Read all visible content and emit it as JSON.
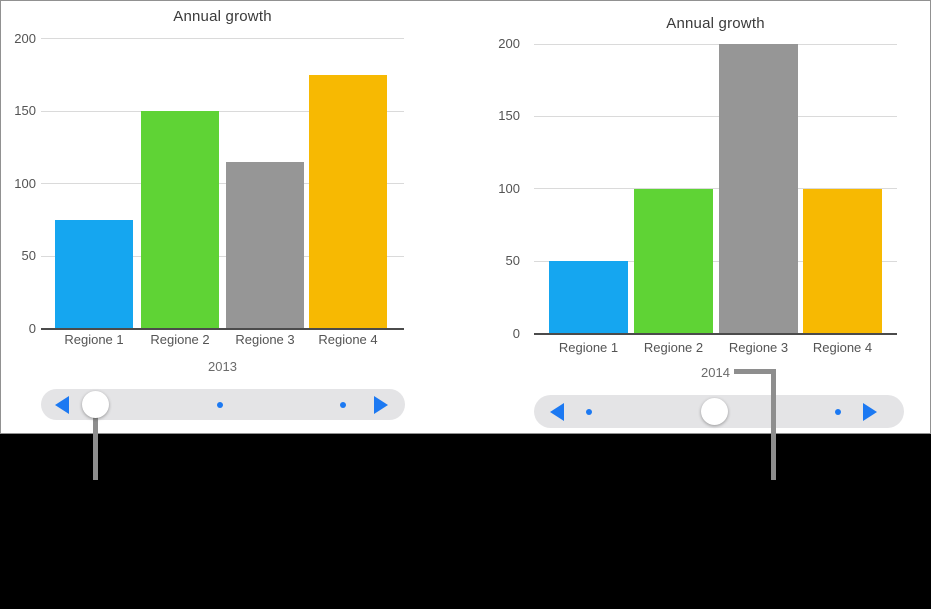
{
  "panel": {
    "background": "#ffffff",
    "border_color": "#919191",
    "bottom_region_color": "#000000"
  },
  "colors": {
    "slider_accent": "#1c79f2",
    "slider_track": "#e4e4e6",
    "slider_thumb": "#ffffff",
    "gridline": "#dadada",
    "axis_line": "#4b4b4b",
    "callout_line": "#8e8e8e",
    "title_text": "#3a3a3a",
    "axis_text": "#545454",
    "year_text": "#6b6b6b"
  },
  "chart_data": [
    {
      "type": "bar",
      "title": "Annual growth",
      "categories": [
        "Regione 1",
        "Regione 2",
        "Regione 3",
        "Regione 4"
      ],
      "values": [
        75,
        150,
        115,
        175
      ],
      "bar_colors": [
        "#15a6f0",
        "#5fd335",
        "#969696",
        "#f7b902"
      ],
      "year_label": "2013",
      "yticks": [
        0,
        50,
        100,
        150,
        200
      ],
      "ylim": [
        0,
        200
      ],
      "xlabel": "",
      "ylabel": "",
      "grid": true,
      "legend": false
    },
    {
      "type": "bar",
      "title": "Annual growth",
      "categories": [
        "Regione 1",
        "Regione 2",
        "Regione 3",
        "Regione 4"
      ],
      "values": [
        50,
        100,
        200,
        100
      ],
      "bar_colors": [
        "#15a6f0",
        "#5fd335",
        "#969696",
        "#f7b902"
      ],
      "year_label": "2014",
      "yticks": [
        0,
        50,
        100,
        150,
        200
      ],
      "ylim": [
        0,
        200
      ],
      "xlabel": "",
      "ylabel": "",
      "grid": true,
      "legend": false
    }
  ],
  "sliders": [
    {
      "name": "chart-2013-year-slider",
      "icons": [
        "slider-back-icon",
        "slider-thumb",
        "slider-dot",
        "slider-dot",
        "slider-forward-icon"
      ],
      "thumb_position": "left",
      "dot_count": 2
    },
    {
      "name": "chart-2014-year-slider",
      "icons": [
        "slider-back-icon",
        "slider-dot",
        "slider-thumb",
        "slider-dot",
        "slider-forward-icon"
      ],
      "thumb_position": "middle",
      "dot_count": 2
    }
  ],
  "annotations": {
    "callouts": [
      "left-slider-thumb-callout",
      "year-2014-callout"
    ]
  }
}
